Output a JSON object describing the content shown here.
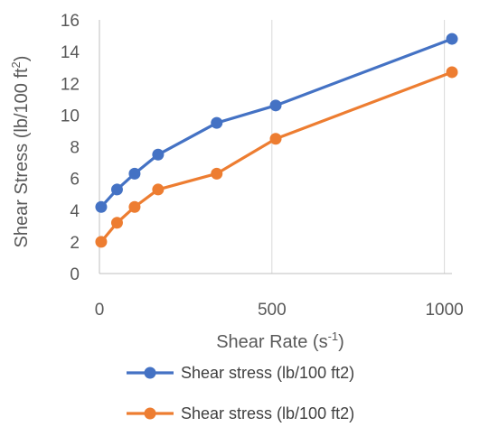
{
  "chart_data": {
    "type": "line",
    "xlabel": "Shear Rate (s",
    "xlabel_sup": "-1",
    "xlabel_end": ")",
    "ylabel": "Shear Stress  (lb/100 ft",
    "ylabel_sup": "2",
    "ylabel_end": ")",
    "xlim": [
      0,
      1022
    ],
    "ylim": [
      0,
      16
    ],
    "x_ticks": [
      0,
      500,
      1000
    ],
    "y_ticks": [
      0,
      2,
      4,
      6,
      8,
      10,
      12,
      14,
      16
    ],
    "grid": "vertical-major",
    "legend_position": "bottom",
    "series": [
      {
        "name": "Shear stress (lb/100 ft2)",
        "color": "#4472C4",
        "x": [
          5.1,
          51,
          102,
          170,
          340,
          511,
          1022
        ],
        "y": [
          4.2,
          5.3,
          6.3,
          7.5,
          9.5,
          10.6,
          14.8
        ]
      },
      {
        "name": "Shear stress (lb/100 ft2)",
        "color": "#ED7D31",
        "x": [
          5.1,
          51,
          102,
          170,
          340,
          511,
          1022
        ],
        "y": [
          2.0,
          3.2,
          4.2,
          5.3,
          6.3,
          8.5,
          12.7
        ]
      }
    ]
  }
}
